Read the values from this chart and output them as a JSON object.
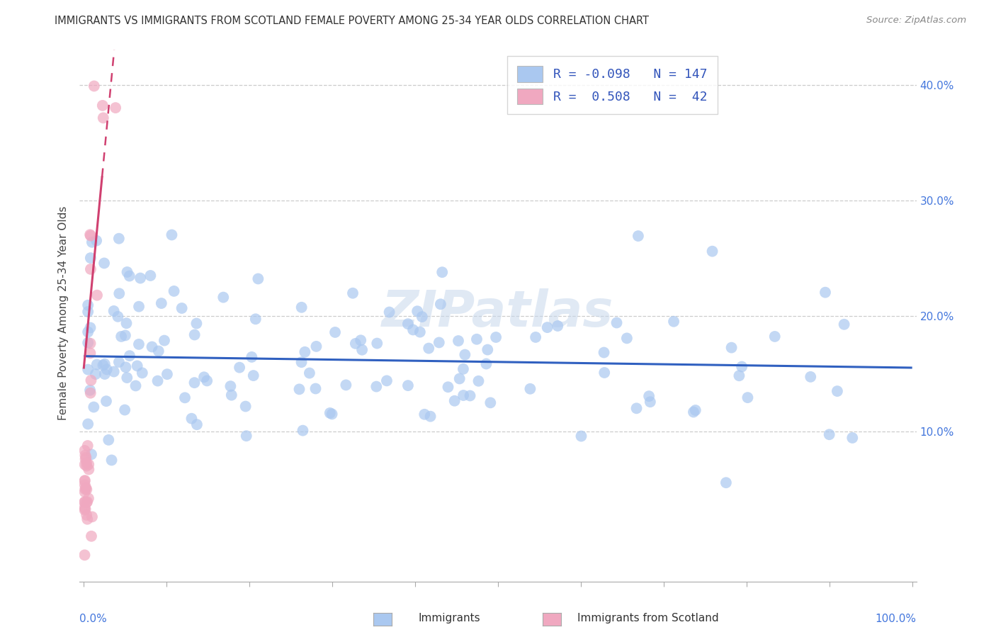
{
  "title": "IMMIGRANTS VS IMMIGRANTS FROM SCOTLAND FEMALE POVERTY AMONG 25-34 YEAR OLDS CORRELATION CHART",
  "source": "Source: ZipAtlas.com",
  "ylabel": "Female Poverty Among 25-34 Year Olds",
  "blue_R": -0.098,
  "blue_N": 147,
  "pink_R": 0.508,
  "pink_N": 42,
  "blue_color": "#aac8f0",
  "pink_color": "#f0a8c0",
  "blue_line_color": "#3060c0",
  "pink_line_color": "#d04070",
  "watermark": "ZIPatlas",
  "legend_label_blue": "Immigrants",
  "legend_label_pink": "Immigrants from Scotland",
  "blue_line_y0": 0.165,
  "blue_line_y1": 0.155,
  "pink_line_x_data_end": 0.022,
  "pink_line_slope": 7.5,
  "pink_line_intercept": 0.155,
  "ytick_vals": [
    0.1,
    0.2,
    0.3,
    0.4
  ],
  "ytick_labels": [
    "10.0%",
    "20.0%",
    "30.0%",
    "40.0%"
  ],
  "xlim": [
    -0.005,
    1.005
  ],
  "ylim": [
    -0.03,
    0.435
  ]
}
